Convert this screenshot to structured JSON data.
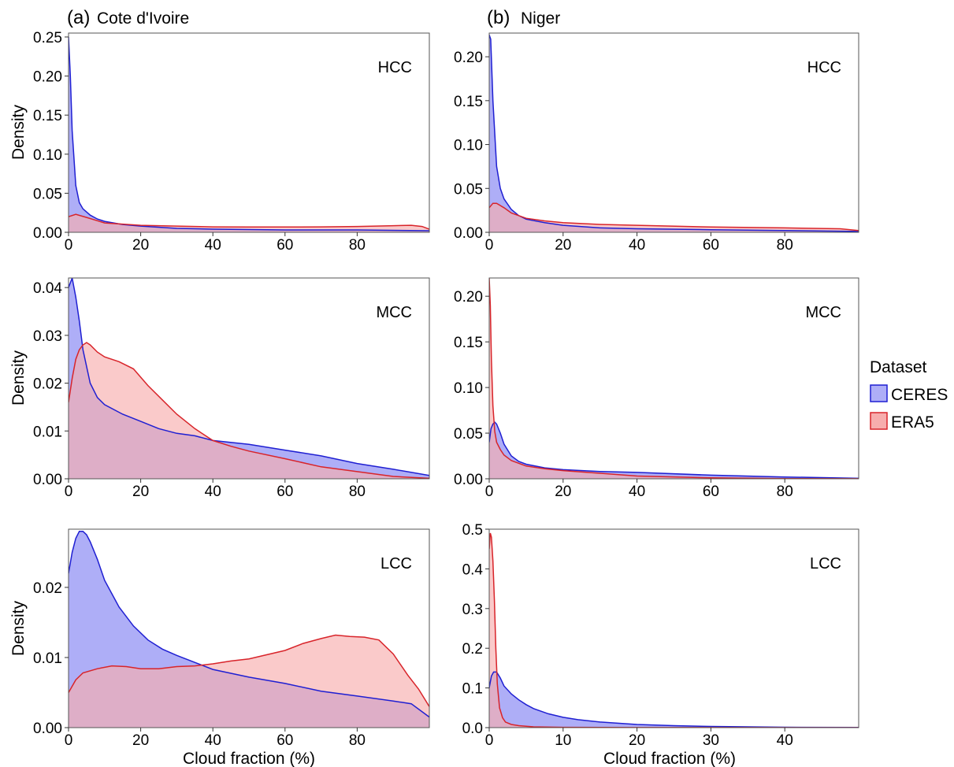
{
  "columns": [
    {
      "label": "(a)",
      "title": "Cote d'Ivoire"
    },
    {
      "label": "(b)",
      "title": "Niger"
    }
  ],
  "ylabel": "Density",
  "xlabel": "Cloud fraction (%)",
  "legend": {
    "title": "Dataset",
    "placement": "right",
    "items": [
      {
        "name": "CERES",
        "fill": "#aeaef7",
        "stroke": "#1f1fd2"
      },
      {
        "name": "ERA5",
        "fill": "#f7adad",
        "stroke": "#d8242a"
      }
    ]
  },
  "colors": {
    "ceres_fill": "#aeaef7",
    "ceres_line": "#1f1fd2",
    "era5_fill": "#f7adad",
    "era5_line": "#d8242a",
    "overlap": "#c97fb7"
  },
  "chart_data": [
    {
      "type": "area",
      "column": 0,
      "row": 0,
      "annotation": "HCC",
      "xlim": [
        0,
        100
      ],
      "ylim": [
        0,
        0.255
      ],
      "xticks": [
        0,
        20,
        40,
        60,
        80
      ],
      "yticks": [
        0,
        0.05,
        0.1,
        0.15,
        0.2,
        0.25
      ],
      "ytick_labels": [
        "0.00",
        "0.05",
        "0.10",
        "0.15",
        "0.20",
        "0.25"
      ],
      "series": [
        {
          "name": "CERES",
          "x": [
            0,
            0.5,
            1,
            2,
            3,
            4,
            6,
            8,
            10,
            15,
            20,
            30,
            40,
            60,
            80,
            100
          ],
          "y": [
            0.25,
            0.2,
            0.13,
            0.06,
            0.038,
            0.03,
            0.022,
            0.017,
            0.014,
            0.01,
            0.008,
            0.005,
            0.004,
            0.003,
            0.003,
            0.002
          ]
        },
        {
          "name": "ERA5",
          "x": [
            0,
            2,
            5,
            10,
            20,
            30,
            40,
            50,
            60,
            70,
            80,
            90,
            95,
            98,
            100
          ],
          "y": [
            0.02,
            0.023,
            0.019,
            0.012,
            0.009,
            0.008,
            0.007,
            0.0068,
            0.0068,
            0.007,
            0.0075,
            0.0085,
            0.009,
            0.0075,
            0.004
          ]
        }
      ]
    },
    {
      "type": "area",
      "column": 1,
      "row": 0,
      "annotation": "HCC",
      "xlim": [
        0,
        100
      ],
      "ylim": [
        0,
        0.227
      ],
      "xticks": [
        0,
        20,
        40,
        60,
        80
      ],
      "yticks": [
        0,
        0.05,
        0.1,
        0.15,
        0.2
      ],
      "ytick_labels": [
        "0.00",
        "0.05",
        "0.10",
        "0.15",
        "0.20"
      ],
      "series": [
        {
          "name": "CERES",
          "x": [
            0,
            0.4,
            1,
            2,
            3,
            4,
            6,
            8,
            10,
            15,
            20,
            30,
            40,
            60,
            80,
            100
          ],
          "y": [
            0.225,
            0.22,
            0.15,
            0.075,
            0.05,
            0.038,
            0.026,
            0.019,
            0.015,
            0.011,
            0.008,
            0.005,
            0.004,
            0.003,
            0.002,
            0.001
          ]
        },
        {
          "name": "ERA5",
          "x": [
            0,
            1,
            2,
            4,
            6,
            10,
            15,
            20,
            30,
            40,
            60,
            80,
            95,
            100
          ],
          "y": [
            0.028,
            0.033,
            0.033,
            0.028,
            0.022,
            0.016,
            0.013,
            0.011,
            0.009,
            0.008,
            0.006,
            0.005,
            0.004,
            0.002
          ]
        }
      ]
    },
    {
      "type": "area",
      "column": 0,
      "row": 1,
      "annotation": "MCC",
      "xlim": [
        0,
        100
      ],
      "ylim": [
        0,
        0.042
      ],
      "xticks": [
        0,
        20,
        40,
        60,
        80
      ],
      "yticks": [
        0,
        0.01,
        0.02,
        0.03,
        0.04
      ],
      "ytick_labels": [
        "0.00",
        "0.01",
        "0.02",
        "0.03",
        "0.04"
      ],
      "series": [
        {
          "name": "CERES",
          "x": [
            0,
            1,
            2,
            3,
            4,
            6,
            8,
            10,
            15,
            20,
            25,
            30,
            35,
            40,
            50,
            60,
            70,
            80,
            90,
            100
          ],
          "y": [
            0.04,
            0.042,
            0.038,
            0.033,
            0.027,
            0.02,
            0.017,
            0.0155,
            0.0135,
            0.012,
            0.0105,
            0.0095,
            0.009,
            0.008,
            0.0072,
            0.006,
            0.0048,
            0.0032,
            0.002,
            0.0007
          ]
        },
        {
          "name": "ERA5",
          "x": [
            0,
            1,
            2,
            3,
            4,
            5,
            6,
            8,
            10,
            14,
            18,
            22,
            26,
            30,
            35,
            40,
            45,
            50,
            60,
            70,
            80,
            90,
            100
          ],
          "y": [
            0.016,
            0.021,
            0.025,
            0.027,
            0.028,
            0.0285,
            0.028,
            0.0265,
            0.0255,
            0.0245,
            0.023,
            0.0195,
            0.0165,
            0.0135,
            0.0105,
            0.008,
            0.0068,
            0.0058,
            0.0042,
            0.0025,
            0.0015,
            0.0005,
            0.0001
          ]
        }
      ]
    },
    {
      "type": "area",
      "column": 1,
      "row": 1,
      "annotation": "MCC",
      "xlim": [
        0,
        100
      ],
      "ylim": [
        0,
        0.22
      ],
      "xticks": [
        0,
        20,
        40,
        60,
        80
      ],
      "yticks": [
        0,
        0.05,
        0.1,
        0.15,
        0.2
      ],
      "ytick_labels": [
        "0.00",
        "0.05",
        "0.10",
        "0.15",
        "0.20"
      ],
      "series": [
        {
          "name": "CERES",
          "x": [
            0,
            0.5,
            1,
            1.5,
            2,
            3,
            4,
            6,
            8,
            10,
            15,
            20,
            30,
            40,
            60,
            80,
            100
          ],
          "y": [
            0.04,
            0.055,
            0.06,
            0.062,
            0.06,
            0.05,
            0.038,
            0.025,
            0.019,
            0.016,
            0.012,
            0.01,
            0.008,
            0.007,
            0.004,
            0.002,
            0.0005
          ]
        },
        {
          "name": "ERA5",
          "x": [
            0,
            0.3,
            0.6,
            1,
            1.5,
            2,
            3,
            4,
            6,
            8,
            10,
            15,
            20,
            30,
            40,
            60,
            80,
            100
          ],
          "y": [
            0.22,
            0.19,
            0.13,
            0.08,
            0.052,
            0.04,
            0.032,
            0.026,
            0.02,
            0.017,
            0.014,
            0.011,
            0.009,
            0.006,
            0.003,
            0.001,
            0.0003,
            0.0001
          ]
        }
      ]
    },
    {
      "type": "area",
      "column": 0,
      "row": 2,
      "annotation": "LCC",
      "xlim": [
        0,
        100
      ],
      "ylim": [
        0,
        0.0283
      ],
      "xticks": [
        0,
        20,
        40,
        60,
        80
      ],
      "yticks": [
        0,
        0.01,
        0.02
      ],
      "ytick_labels": [
        "0.00",
        "0.01",
        "0.02"
      ],
      "series": [
        {
          "name": "CERES",
          "x": [
            0,
            1,
            2,
            3,
            4,
            5,
            6,
            8,
            10,
            14,
            18,
            22,
            26,
            30,
            35,
            40,
            50,
            60,
            70,
            80,
            90,
            95,
            100
          ],
          "y": [
            0.022,
            0.025,
            0.027,
            0.028,
            0.028,
            0.0275,
            0.0265,
            0.024,
            0.021,
            0.0172,
            0.0145,
            0.0125,
            0.0112,
            0.0103,
            0.0093,
            0.0083,
            0.0072,
            0.0063,
            0.0052,
            0.0045,
            0.0038,
            0.0034,
            0.0015
          ]
        },
        {
          "name": "ERA5",
          "x": [
            0,
            2,
            4,
            8,
            12,
            16,
            20,
            25,
            30,
            35,
            40,
            45,
            50,
            55,
            60,
            65,
            70,
            74,
            78,
            82,
            86,
            90,
            94,
            97,
            100
          ],
          "y": [
            0.005,
            0.0068,
            0.0078,
            0.0084,
            0.0088,
            0.0087,
            0.0084,
            0.0084,
            0.0087,
            0.0088,
            0.0091,
            0.0095,
            0.0098,
            0.0104,
            0.011,
            0.012,
            0.0127,
            0.0132,
            0.013,
            0.0129,
            0.0125,
            0.0105,
            0.0075,
            0.0055,
            0.003
          ]
        }
      ]
    },
    {
      "type": "area",
      "column": 1,
      "row": 2,
      "annotation": "LCC",
      "xlim": [
        0,
        50
      ],
      "ylim": [
        0,
        0.5
      ],
      "xticks": [
        0,
        10,
        20,
        30,
        40
      ],
      "yticks": [
        0,
        0.1,
        0.2,
        0.3,
        0.4,
        0.5
      ],
      "ytick_labels": [
        "0.0",
        "0.1",
        "0.2",
        "0.3",
        "0.4",
        "0.5"
      ],
      "series": [
        {
          "name": "CERES",
          "x": [
            0,
            0.3,
            0.6,
            1,
            1.5,
            2,
            3,
            4,
            5,
            6,
            8,
            10,
            12,
            15,
            20,
            25,
            30,
            40,
            50
          ],
          "y": [
            0.1,
            0.13,
            0.14,
            0.14,
            0.125,
            0.105,
            0.085,
            0.07,
            0.058,
            0.048,
            0.035,
            0.026,
            0.02,
            0.014,
            0.008,
            0.005,
            0.003,
            0.001,
            0.0003
          ]
        },
        {
          "name": "ERA5",
          "x": [
            0,
            0.15,
            0.3,
            0.5,
            0.7,
            0.9,
            1.1,
            1.4,
            1.8,
            2.2,
            3,
            4,
            6,
            10,
            20,
            50
          ],
          "y": [
            0.45,
            0.49,
            0.48,
            0.42,
            0.32,
            0.2,
            0.11,
            0.05,
            0.025,
            0.014,
            0.008,
            0.005,
            0.002,
            0.0008,
            0.0002,
            0
          ]
        }
      ]
    }
  ]
}
